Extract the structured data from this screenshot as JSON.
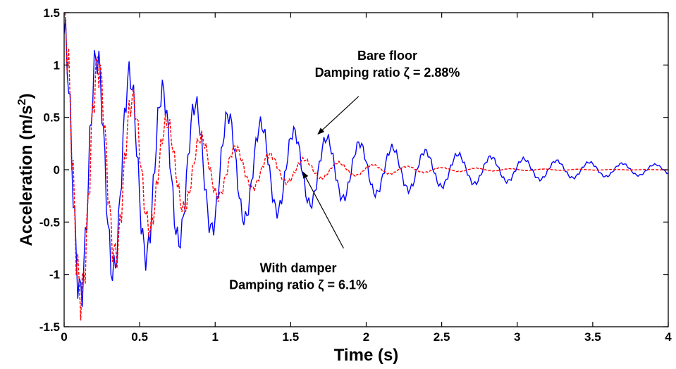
{
  "chart_data": {
    "type": "line",
    "title": "",
    "xlabel": "Time (s)",
    "ylabel_main": "Acceleration (m/s",
    "ylabel_sup": "2",
    "ylabel_tail": ")",
    "xlim": [
      0,
      4
    ],
    "ylim": [
      -1.5,
      1.5
    ],
    "grid": false,
    "legend": "none",
    "x_ticks": [
      0,
      0.5,
      1,
      1.5,
      2,
      2.5,
      3,
      3.5,
      4
    ],
    "x_tick_labels": [
      "0",
      "0.5",
      "1",
      "1.5",
      "2",
      "2.5",
      "3",
      "3.5",
      "4"
    ],
    "y_ticks": [
      -1.5,
      -1,
      -0.5,
      0,
      0.5,
      1,
      1.5
    ],
    "y_tick_labels": [
      "-1.5",
      "-1",
      "-0.5",
      "0",
      "0.5",
      "1",
      "1.5"
    ],
    "sampling": {
      "dt": 0.01,
      "count": 401
    },
    "series": [
      {
        "color": "#0000ff",
        "dash": "solid",
        "model": {
          "amplitude": 1.3,
          "frequency_hz": 4.6,
          "damping_ratio": 0.0288,
          "ripple_amplitude": 0.22,
          "ripple_frequency_hz": 31
        }
      },
      {
        "color": "#ff0000",
        "dash": "dashed",
        "model": {
          "amplitude": 1.45,
          "frequency_hz": 4.4,
          "damping_ratio": 0.061,
          "ripple_amplitude": 0.3,
          "ripple_frequency_hz": 33
        }
      }
    ],
    "annotations": [
      {
        "lines": [
          "Bare floor",
          "Damping ratio ζ = 2.88%"
        ],
        "arrow_to": [
          1.68,
          0.34
        ],
        "arrow_from": [
          1.95,
          0.7
        ],
        "text_anchor": [
          2.14,
          1.05
        ]
      },
      {
        "lines": [
          "With damper",
          "Damping ratio ζ = 6.1%"
        ],
        "arrow_to": [
          1.58,
          -0.02
        ],
        "arrow_from": [
          1.85,
          -0.75
        ],
        "text_anchor": [
          1.55,
          -0.98
        ]
      }
    ]
  }
}
